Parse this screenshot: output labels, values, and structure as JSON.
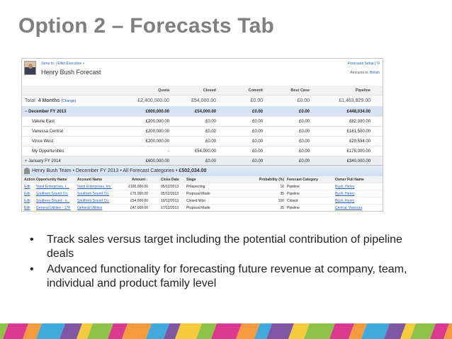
{
  "slide": {
    "title": "Option 2 – Forecasts Tab",
    "bullets": [
      "Track sales versus target including the potential contribution of pipeline deals",
      "Advanced functionality for forecasting future revenue at company, team, individual and product family level"
    ]
  },
  "forecast": {
    "jump_to": "Jump to:  |  Elliot Executive »",
    "name": "Henry Bush Forecast",
    "setup_link": "Forecasts Setup | Vi",
    "amounts_label": "Amounts in:",
    "amounts_value": "British",
    "columns": [
      "Quota",
      "Closed",
      "Commit",
      "Best Case",
      "Pipeline"
    ],
    "total": {
      "label": "Total",
      "period": "4 Months",
      "change": "(Change)",
      "values": [
        "£2,400,000.00",
        "£54,000.00",
        "£0.00",
        "£0.00",
        "£1,463,829.00"
      ]
    },
    "rows": [
      {
        "label": "−  December FY 2013",
        "values": [
          "£600,000.00",
          "£54,000.00",
          "£0.00",
          "£0.00",
          "£448,034.00"
        ]
      },
      {
        "label": "Valerie East",
        "values": [
          "£200,000.00",
          "£0.00",
          "£0.00",
          "£0.00",
          "£82,000.00"
        ]
      },
      {
        "label": "Vanessa Central",
        "values": [
          "£200,000.00",
          "£0.00",
          "£0.00",
          "£0.00",
          "£161,500.00"
        ]
      },
      {
        "label": "Vince West",
        "values": [
          "£200,000.00",
          "£0.00",
          "£0.00",
          "£0.00",
          "£29,534.00"
        ]
      },
      {
        "label": "My Opportunities",
        "values": [
          "-",
          "£54,000.00",
          "£0.00",
          "£0.00",
          "£175,000.00"
        ]
      },
      {
        "label": "+  January FY 2014",
        "values": [
          "£600,000.00",
          "£0.00",
          "£0.00",
          "£0.00",
          "£340,000.00"
        ]
      }
    ]
  },
  "team": {
    "title": "Henry Bush Team  •  December FY 2013  •  All Forecast Categories  •",
    "total": "£502,034.00",
    "headers": [
      "Action",
      "Opportunity Name",
      "Account Name",
      "Amount ↓",
      "Close Date",
      "Stage",
      "Probability (%)",
      "Forecast Category",
      "Owner Full Name"
    ],
    "rows": [
      [
        "Edit",
        "Vand Enterprises, I...",
        "Vand Enterprises, Inc.",
        "£100,000.00",
        "05/12/2013",
        "Prospecting",
        "10",
        "Pipeline",
        "Bush, Henry"
      ],
      [
        "Edit",
        "Southern Sound Co.",
        "Southern Sound Co.",
        "£75,000.00",
        "05/12/2013",
        "Proposal Made",
        "35",
        "Pipeline",
        "Bush, Henry"
      ],
      [
        "Edit",
        "Southern Sound - n...",
        "Southern Sound Co.",
        "£54,000.00",
        "10/12/2013",
        "Closed Won",
        "100",
        "Closed",
        "Bush, Henry"
      ],
      [
        "Edit",
        "General Utilities - 17K",
        "General Utilities",
        "£47,000.00",
        "17/12/2013",
        "Proposal Made",
        "35",
        "Pipeline",
        "Central, Vanessa"
      ]
    ]
  },
  "colors": {
    "title": "#7f7f7f",
    "link": "#2a5db0",
    "month_row": "#d6e3f3",
    "footer_stripes": [
      "#7ab929",
      "#d2187c",
      "#f28a1e",
      "#1e9bd7",
      "#6a3a94",
      "#f6c21c"
    ]
  }
}
